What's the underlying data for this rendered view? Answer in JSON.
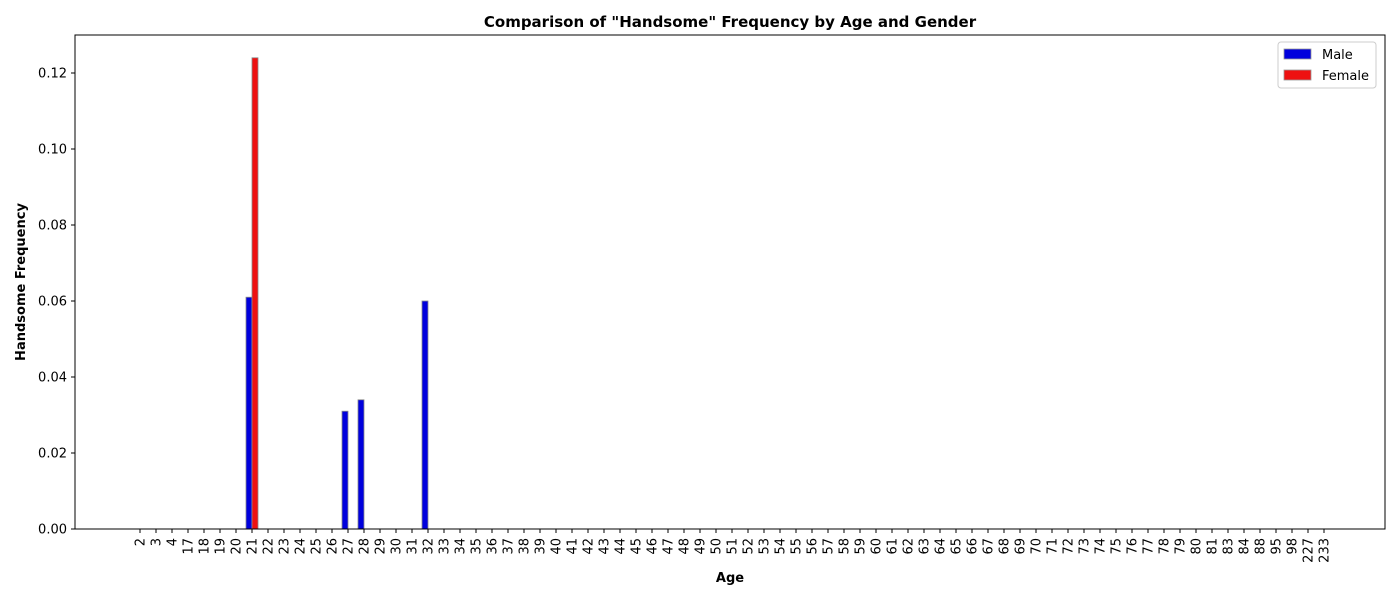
{
  "chart_data": {
    "type": "bar",
    "title": "Comparison of \"Handsome\" Frequency by Age and Gender",
    "xlabel": "Age",
    "ylabel": "Handsome Frequency",
    "ylim": [
      0,
      0.13
    ],
    "yticks": [
      "0.00",
      "0.02",
      "0.04",
      "0.06",
      "0.08",
      "0.10",
      "0.12"
    ],
    "ytick_values": [
      0,
      0.02,
      0.04,
      0.06,
      0.08,
      0.1,
      0.12
    ],
    "legend_position": "top-right",
    "grid": false,
    "categories": [
      "2",
      "3",
      "4",
      "17",
      "18",
      "19",
      "20",
      "21",
      "22",
      "23",
      "24",
      "25",
      "26",
      "27",
      "28",
      "29",
      "30",
      "31",
      "32",
      "33",
      "34",
      "35",
      "36",
      "37",
      "38",
      "39",
      "40",
      "41",
      "42",
      "43",
      "44",
      "45",
      "46",
      "47",
      "48",
      "49",
      "50",
      "51",
      "52",
      "53",
      "54",
      "55",
      "56",
      "57",
      "58",
      "59",
      "60",
      "61",
      "62",
      "63",
      "64",
      "65",
      "66",
      "67",
      "68",
      "69",
      "70",
      "71",
      "72",
      "73",
      "74",
      "75",
      "76",
      "77",
      "78",
      "79",
      "80",
      "81",
      "83",
      "84",
      "88",
      "95",
      "98",
      "227",
      "233"
    ],
    "series": [
      {
        "name": "Male",
        "color": "#0000dd",
        "values": [
          0,
          0,
          0,
          0,
          0,
          0,
          0,
          0.061,
          0,
          0,
          0,
          0,
          0,
          0.031,
          0.034,
          0,
          0,
          0,
          0.06,
          0,
          0,
          0,
          0,
          0,
          0,
          0,
          0,
          0,
          0,
          0,
          0,
          0,
          0,
          0,
          0,
          0,
          0,
          0,
          0,
          0,
          0,
          0,
          0,
          0,
          0,
          0,
          0,
          0,
          0,
          0,
          0,
          0,
          0,
          0,
          0,
          0,
          0,
          0,
          0,
          0,
          0,
          0,
          0,
          0,
          0,
          0,
          0,
          0,
          0,
          0,
          0,
          0,
          0,
          0,
          0
        ]
      },
      {
        "name": "Female",
        "color": "#ee1111",
        "values": [
          0,
          0,
          0,
          0,
          0,
          0,
          0,
          0.124,
          0,
          0,
          0,
          0,
          0,
          0,
          0,
          0,
          0,
          0,
          0,
          0,
          0,
          0,
          0,
          0,
          0,
          0,
          0,
          0,
          0,
          0,
          0,
          0,
          0,
          0,
          0,
          0,
          0,
          0,
          0,
          0,
          0,
          0,
          0,
          0,
          0,
          0,
          0,
          0,
          0,
          0,
          0,
          0,
          0,
          0,
          0,
          0,
          0,
          0,
          0,
          0,
          0,
          0,
          0,
          0,
          0,
          0,
          0,
          0,
          0,
          0,
          0,
          0,
          0,
          0,
          0
        ]
      }
    ]
  }
}
